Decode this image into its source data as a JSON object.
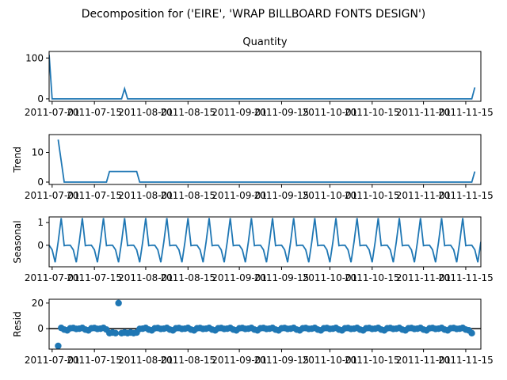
{
  "suptitle": "Decomposition for ('EIRE', 'WRAP BILLBOARD FONTS DESIGN')",
  "colors": {
    "line": "#1f77b4",
    "axis": "#000000",
    "background": "#ffffff"
  },
  "x_tick_labels": [
    "2011-07-01",
    "2011-07-15",
    "2011-08-01",
    "2011-08-15",
    "2011-09-01",
    "2011-09-15",
    "2011-10-01",
    "2011-10-15",
    "2011-11-01",
    "2011-11-15"
  ],
  "chart_data": [
    {
      "id": "observed",
      "type": "line",
      "title": "Quantity",
      "ylabel": "",
      "xlim": [
        "2011-06-30",
        "2011-11-20"
      ],
      "ylim": [
        -6,
        116
      ],
      "yticks": [
        0,
        100
      ],
      "x_start": "2011-06-30",
      "x_end": "2011-11-20",
      "values": [
        108,
        0,
        0,
        0,
        0,
        0,
        0,
        0,
        0,
        0,
        0,
        0,
        0,
        0,
        0,
        0,
        0,
        0,
        0,
        0,
        0,
        0,
        0,
        0,
        0,
        25,
        0,
        0,
        0,
        0,
        0,
        0,
        0,
        0,
        0,
        0,
        0,
        0,
        0,
        0,
        0,
        0,
        0,
        0,
        0,
        0,
        0,
        0,
        0,
        0,
        0,
        0,
        0,
        0,
        0,
        0,
        0,
        0,
        0,
        0,
        0,
        0,
        0,
        0,
        0,
        0,
        0,
        0,
        0,
        0,
        0,
        0,
        0,
        0,
        0,
        0,
        0,
        0,
        0,
        0,
        0,
        0,
        0,
        0,
        0,
        0,
        0,
        0,
        0,
        0,
        0,
        0,
        0,
        0,
        0,
        0,
        0,
        0,
        0,
        0,
        0,
        0,
        0,
        0,
        0,
        0,
        0,
        0,
        0,
        0,
        0,
        0,
        0,
        0,
        0,
        0,
        0,
        0,
        0,
        0,
        0,
        0,
        0,
        0,
        0,
        0,
        0,
        0,
        0,
        0,
        0,
        0,
        0,
        0,
        0,
        0,
        0,
        0,
        0,
        0,
        0,
        28
      ]
    },
    {
      "id": "trend",
      "type": "line",
      "ylabel": "Trend",
      "xlim": [
        "2011-06-30",
        "2011-11-20"
      ],
      "ylim": [
        -0.8,
        16
      ],
      "yticks": [
        0,
        10
      ],
      "segments": [
        {
          "x": [
            "2011-07-03",
            "2011-07-05",
            "2011-07-06",
            "2011-07-19",
            "2011-07-20",
            "2011-07-29",
            "2011-07-30",
            "2011-11-17",
            "2011-11-18"
          ],
          "y": [
            14.3,
            0,
            0,
            0,
            3.57,
            3.57,
            0,
            0,
            3.57
          ]
        }
      ]
    },
    {
      "id": "seasonal",
      "type": "line",
      "ylabel": "Seasonal",
      "xlim": [
        "2011-06-30",
        "2011-11-20"
      ],
      "ylim": [
        -0.95,
        1.25
      ],
      "yticks": [
        0,
        1
      ],
      "x_start": "2011-06-30",
      "period_pattern": [
        0,
        -0.2,
        -0.75,
        0.15,
        1.2,
        -0.02,
        0
      ],
      "pattern_offset": 0
    },
    {
      "id": "resid",
      "type": "scatter",
      "ylabel": "Resid",
      "xlim": [
        "2011-06-30",
        "2011-11-20"
      ],
      "ylim": [
        -16,
        23
      ],
      "yticks": [
        0,
        20
      ],
      "zero_line": true,
      "x_start": "2011-07-03",
      "x_end": "2011-11-17",
      "outliers": [
        {
          "x": "2011-07-03",
          "y": -13.5
        },
        {
          "x": "2011-07-23",
          "y": 20
        }
      ],
      "values_note": "",
      "pattern": [
        0,
        0.6,
        -0.7,
        -1.3,
        0.3,
        0.5,
        -0.2
      ],
      "dip_run": {
        "from": "2011-07-20",
        "to": "2011-07-29",
        "y": -3.5
      },
      "end_point": {
        "x": "2011-11-17",
        "y": -3.5
      }
    }
  ]
}
